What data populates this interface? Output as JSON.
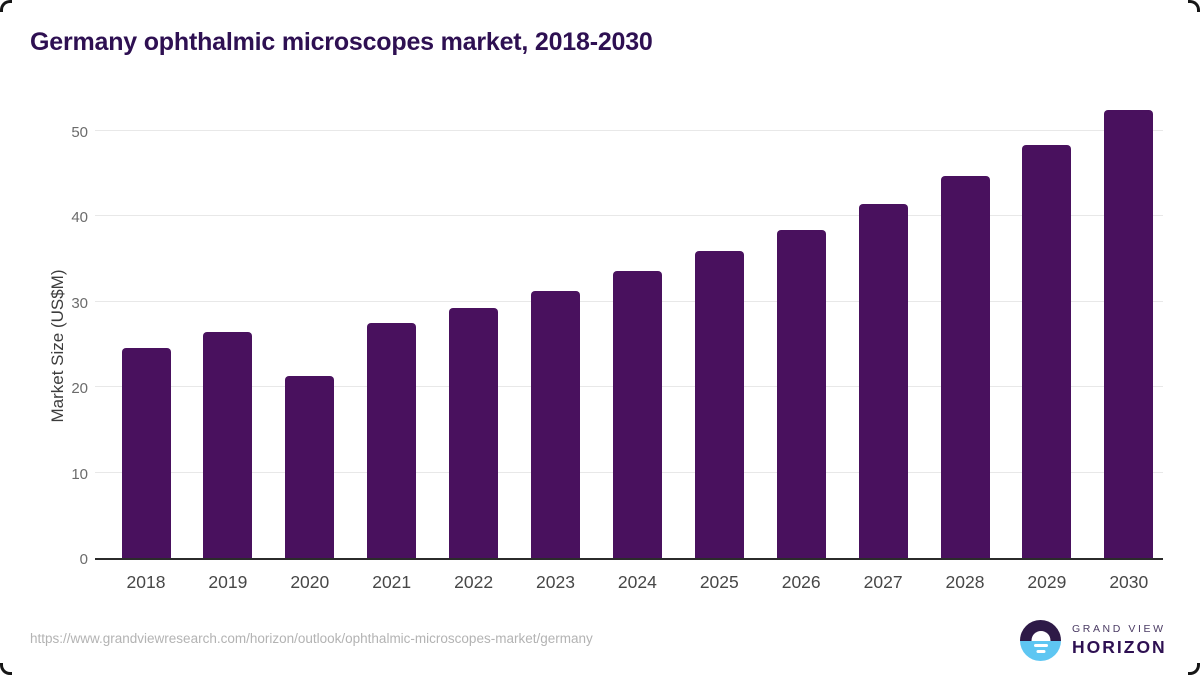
{
  "title": "Germany ophthalmic microscopes market, 2018-2030",
  "colors": {
    "bar": "#49115e",
    "title_text": "#2e1052",
    "gridline": "#e8e8e8",
    "axis_line": "#2b2b2b",
    "logo_purple": "#2e1a47",
    "logo_blue": "#5ec6f2"
  },
  "chart_data": {
    "type": "bar",
    "title": "Germany ophthalmic microscopes market, 2018-2030",
    "categories": [
      "2018",
      "2019",
      "2020",
      "2021",
      "2022",
      "2023",
      "2024",
      "2025",
      "2026",
      "2027",
      "2028",
      "2029",
      "2030"
    ],
    "values": [
      24.6,
      26.5,
      21.3,
      27.5,
      29.2,
      31.3,
      33.6,
      35.9,
      38.4,
      41.4,
      44.7,
      48.3,
      52.4
    ],
    "xlabel": "",
    "ylabel": "Market Size (US$M)",
    "ylim": [
      0,
      55
    ],
    "yticks": [
      0,
      10,
      20,
      30,
      40,
      50
    ],
    "grid": "horizontal",
    "legend": "none",
    "bar_color": "#49115e"
  },
  "footer": {
    "source_url": "https://www.grandviewresearch.com/horizon/outlook/ophthalmic-microscopes-market/germany",
    "logo": {
      "line1": "GRAND VIEW",
      "line2": "HORIZON"
    }
  }
}
